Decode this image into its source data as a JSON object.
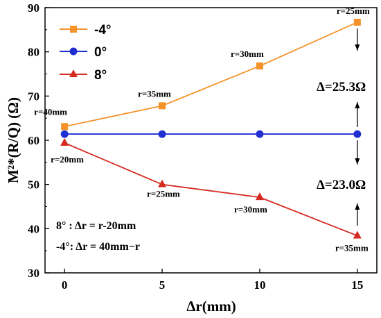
{
  "chart_data": {
    "type": "line",
    "xlabel": "Δr(mm)",
    "ylabel": "M²*(R/Q) (Ω)",
    "xlim": [
      -1,
      16
    ],
    "ylim": [
      30,
      90
    ],
    "xticks": [
      0,
      5,
      10,
      15
    ],
    "yticks": [
      30,
      40,
      50,
      60,
      70,
      80,
      90
    ],
    "grid": false,
    "legend_position": "top-left",
    "series": [
      {
        "name": "-4°",
        "color": "#f5922a",
        "marker": "square",
        "x": [
          0,
          5,
          10,
          15
        ],
        "y": [
          63.1,
          67.8,
          76.8,
          86.7
        ],
        "labels": [
          "r=40mm",
          "r=35mm",
          "r=30mm",
          "r=25mm"
        ]
      },
      {
        "name": "0°",
        "color": "#1f2fd0",
        "marker": "circle",
        "x": [
          0,
          5,
          10,
          15
        ],
        "y": [
          61.4,
          61.4,
          61.4,
          61.4
        ],
        "labels": []
      },
      {
        "name": "8°",
        "color": "#d42a20",
        "marker": "triangle",
        "x": [
          0,
          5,
          10,
          15
        ],
        "y": [
          59.4,
          50.0,
          47.1,
          38.4
        ],
        "labels": [
          "r=20mm",
          "r=25mm",
          "r=30mm",
          "r=35mm"
        ]
      }
    ],
    "annotations": {
      "delta_upper": "Δ=25.3Ω",
      "delta_lower": "Δ=23.0Ω",
      "formula_1": "8° : Δr = r-20mm",
      "formula_2": "-4°: Δr = 40mm−r"
    }
  }
}
